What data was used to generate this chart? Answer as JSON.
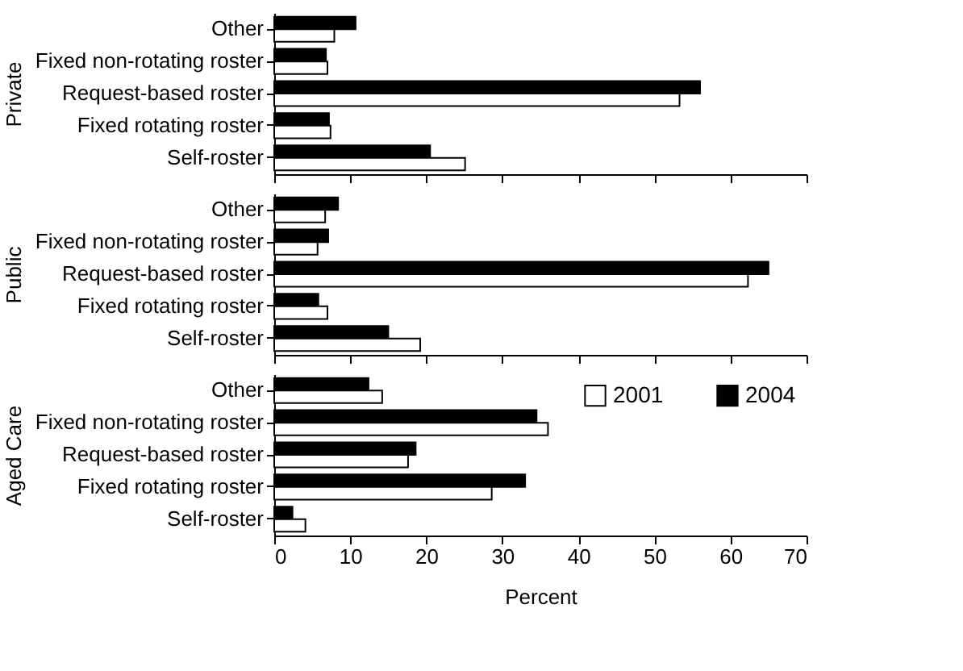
{
  "chart_data": [
    {
      "type": "bar",
      "orientation": "horizontal",
      "ylabel": "Private",
      "categories": [
        "Other",
        "Fixed non-rotating roster",
        "Request-based roster",
        "Fixed rotating roster",
        "Self-roster"
      ],
      "xlim": [
        0,
        70
      ],
      "xticks": [
        0,
        10,
        20,
        30,
        40,
        50,
        60,
        70
      ],
      "tick_labels": "y",
      "grid": false,
      "series": [
        {
          "color": "#000000",
          "values": [
            10.7,
            6.8,
            56.0,
            7.2,
            20.5
          ]
        },
        {
          "color": "#ffffff",
          "values": [
            7.9,
            7.0,
            53.3,
            7.4,
            25.1
          ]
        }
      ]
    },
    {
      "type": "bar",
      "orientation": "horizontal",
      "ylabel": "Public",
      "categories": [
        "Other",
        "Fixed non-rotating roster",
        "Request-based roster",
        "Fixed rotating roster",
        "Self-roster"
      ],
      "xlim": [
        0,
        70
      ],
      "xticks": [
        0,
        10,
        20,
        30,
        40,
        50,
        60,
        70
      ],
      "tick_labels": "y",
      "grid": false,
      "series": [
        {
          "color": "#000000",
          "values": [
            8.4,
            7.1,
            65.0,
            5.8,
            15.0
          ]
        },
        {
          "color": "#ffffff",
          "values": [
            6.7,
            5.7,
            62.3,
            7.0,
            19.2
          ]
        }
      ]
    },
    {
      "type": "bar",
      "orientation": "horizontal",
      "ylabel": "Aged Care",
      "xlabel": "Percent",
      "categories": [
        "Other",
        "Fixed non-rotating roster",
        "Request-based roster",
        "Fixed rotating roster",
        "Self-roster"
      ],
      "xlim": [
        0,
        70
      ],
      "xticks": [
        0,
        10,
        20,
        30,
        40,
        50,
        60,
        70
      ],
      "legend": "top right",
      "grid": false,
      "series": [
        {
          "name": "2004",
          "color": "#000000",
          "values": [
            12.4,
            34.5,
            18.6,
            33.0,
            2.4
          ]
        },
        {
          "name": "2001",
          "color": "#ffffff",
          "values": [
            14.2,
            36.0,
            17.6,
            28.6,
            4.1
          ]
        }
      ]
    }
  ]
}
